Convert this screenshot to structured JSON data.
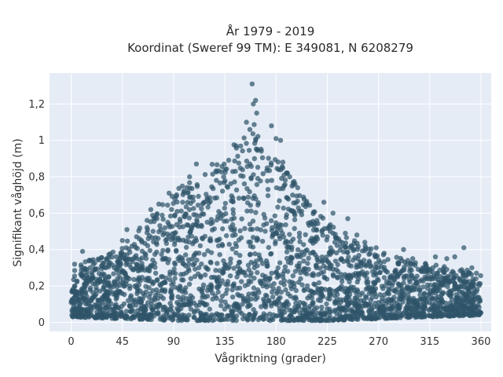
{
  "chart_data": {
    "type": "scatter",
    "title": "År 1979 - 2019",
    "subtitle": "Koordinat (Sweref 99 TM): E 349081, N 6208279",
    "xlabel": "Vågriktning (grader)",
    "ylabel": "Signifikant våghöjd (m)",
    "xlim": [
      -19,
      369
    ],
    "ylim": [
      -0.05,
      1.37
    ],
    "xticks": [
      0,
      45,
      90,
      135,
      180,
      225,
      270,
      315,
      360
    ],
    "xtick_labels": [
      "0",
      "45",
      "90",
      "135",
      "180",
      "225",
      "270",
      "315",
      "360"
    ],
    "yticks": [
      0,
      0.2,
      0.4,
      0.6,
      0.8,
      1,
      1.2
    ],
    "ytick_labels": [
      "0",
      "0,2",
      "0,4",
      "0,6",
      "0,8",
      "1",
      "1,2"
    ],
    "grid": true,
    "marker_color": "#2f5469",
    "plot_background": "#e5ecf6",
    "envelope": [
      {
        "x": 0,
        "ymin": 0.03,
        "ymax": 0.3
      },
      {
        "x": 45,
        "ymin": 0.02,
        "ymax": 0.42
      },
      {
        "x": 90,
        "ymin": 0.01,
        "ymax": 0.72
      },
      {
        "x": 135,
        "ymin": 0.01,
        "ymax": 0.92
      },
      {
        "x": 160,
        "ymin": 0.01,
        "ymax": 1.1
      },
      {
        "x": 180,
        "ymin": 0.01,
        "ymax": 0.9
      },
      {
        "x": 225,
        "ymin": 0.01,
        "ymax": 0.55
      },
      {
        "x": 270,
        "ymin": 0.02,
        "ymax": 0.38
      },
      {
        "x": 315,
        "ymin": 0.03,
        "ymax": 0.32
      },
      {
        "x": 360,
        "ymin": 0.04,
        "ymax": 0.28
      }
    ],
    "outliers": [
      {
        "x": 159,
        "y": 1.31
      },
      {
        "x": 162,
        "y": 1.22
      },
      {
        "x": 160,
        "y": 1.2
      },
      {
        "x": 163,
        "y": 1.15
      },
      {
        "x": 154,
        "y": 1.1
      },
      {
        "x": 157,
        "y": 1.06
      },
      {
        "x": 176,
        "y": 1.08
      },
      {
        "x": 180,
        "y": 1.01
      },
      {
        "x": 184,
        "y": 1.0
      },
      {
        "x": 145,
        "y": 0.97
      },
      {
        "x": 186,
        "y": 0.88
      },
      {
        "x": 192,
        "y": 0.8
      },
      {
        "x": 199,
        "y": 0.74
      },
      {
        "x": 110,
        "y": 0.87
      },
      {
        "x": 104,
        "y": 0.8
      },
      {
        "x": 86,
        "y": 0.71
      },
      {
        "x": 77,
        "y": 0.65
      },
      {
        "x": 70,
        "y": 0.62
      },
      {
        "x": 49,
        "y": 0.51
      },
      {
        "x": 45,
        "y": 0.45
      },
      {
        "x": 10,
        "y": 0.39
      },
      {
        "x": 3,
        "y": 0.32
      },
      {
        "x": 222,
        "y": 0.66
      },
      {
        "x": 230,
        "y": 0.6
      },
      {
        "x": 243,
        "y": 0.57
      },
      {
        "x": 251,
        "y": 0.48
      },
      {
        "x": 258,
        "y": 0.44
      },
      {
        "x": 268,
        "y": 0.41
      },
      {
        "x": 275,
        "y": 0.38
      },
      {
        "x": 292,
        "y": 0.4
      },
      {
        "x": 300,
        "y": 0.35
      },
      {
        "x": 320,
        "y": 0.36
      },
      {
        "x": 330,
        "y": 0.35
      },
      {
        "x": 337,
        "y": 0.36
      },
      {
        "x": 345,
        "y": 0.41
      },
      {
        "x": 352,
        "y": 0.3
      }
    ]
  }
}
